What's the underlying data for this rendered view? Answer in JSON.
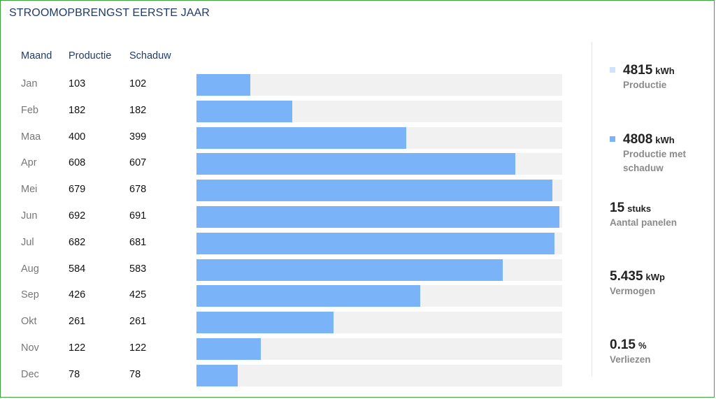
{
  "title": "STROOMOPBRENGST EERSTE JAAR",
  "table": {
    "headers": [
      "Maand",
      "Productie",
      "Schaduw"
    ]
  },
  "chart_data": {
    "type": "bar",
    "orientation": "horizontal",
    "categories": [
      "Jan",
      "Feb",
      "Maa",
      "Apr",
      "Mei",
      "Jun",
      "Jul",
      "Aug",
      "Sep",
      "Okt",
      "Nov",
      "Dec"
    ],
    "series": [
      {
        "name": "Productie",
        "values": [
          103,
          182,
          400,
          608,
          679,
          692,
          682,
          584,
          426,
          261,
          122,
          78
        ]
      },
      {
        "name": "Schaduw",
        "values": [
          102,
          182,
          399,
          607,
          678,
          691,
          681,
          583,
          425,
          261,
          122,
          78
        ]
      }
    ],
    "xlim": [
      0,
      692
    ],
    "bar_color": "#7ab3f8",
    "track_color": "#f1f1f1"
  },
  "stats": [
    {
      "value": "4815",
      "unit": "kWh",
      "label": "Productie",
      "swatch": "#cfe3fb"
    },
    {
      "value": "4808",
      "unit": "kWh",
      "label": "Productie met schaduw",
      "swatch": "#7ab3f8"
    },
    {
      "value": "15",
      "unit": "stuks",
      "label": "Aantal panelen"
    },
    {
      "value": "5.435",
      "unit": "kWp",
      "label": "Vermogen"
    },
    {
      "value": "0.15",
      "unit": "%",
      "label": "Verliezen"
    }
  ]
}
